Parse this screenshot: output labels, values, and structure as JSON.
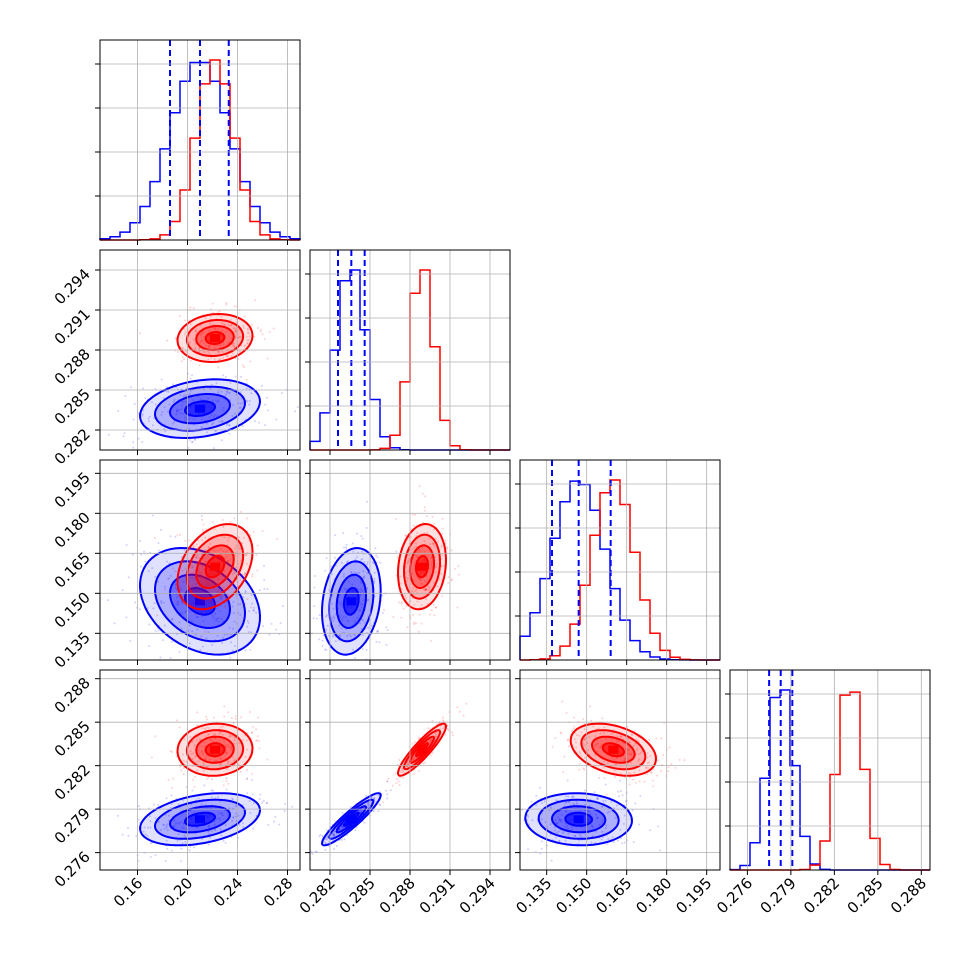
{
  "chart_data": {
    "type": "corner",
    "series": [
      {
        "name": "",
        "color": "#0000ff",
        "means": [
          0.21,
          0.2836,
          0.147,
          0.2783
        ],
        "sds": [
          0.024,
          0.0011,
          0.01,
          0.0009
        ]
      },
      {
        "name": "",
        "color": "#ff0000",
        "means": [
          0.222,
          0.2889,
          0.16,
          0.2831
        ],
        "sds": [
          0.015,
          0.0009,
          0.008,
          0.0009
        ]
      }
    ],
    "correlations": {
      "blue": {
        "1,0": 0.25,
        "2,0": -0.3,
        "2,1": 0.2,
        "3,0": 0.35,
        "3,1": 0.92,
        "3,2": -0.05
      },
      "red": {
        "1,0": 0.1,
        "2,0": 0.35,
        "2,1": 0.15,
        "3,0": 0.05,
        "3,1": 0.9,
        "3,2": -0.35
      }
    },
    "axis_ranges": [
      [
        0.13,
        0.29
      ],
      [
        0.2805,
        0.2955
      ],
      [
        0.125,
        0.2
      ],
      [
        0.2748,
        0.2886
      ]
    ],
    "ticks": [
      [
        0.16,
        0.2,
        0.24,
        0.28
      ],
      [
        0.282,
        0.285,
        0.288,
        0.291,
        0.294
      ],
      [
        0.135,
        0.15,
        0.165,
        0.18,
        0.195
      ],
      [
        0.276,
        0.279,
        0.282,
        0.285,
        0.288
      ]
    ],
    "tick_labels": [
      [
        "0.16",
        "0.20",
        "0.24",
        "0.28"
      ],
      [
        "0.282",
        "0.285",
        "0.288",
        "0.291",
        "0.294"
      ],
      [
        "0.135",
        "0.150",
        "0.165",
        "0.180",
        "0.195"
      ],
      [
        "0.276",
        "0.279",
        "0.282",
        "0.285",
        "0.288"
      ]
    ],
    "quantile_lines": [
      [
        0.186,
        0.21,
        0.233
      ],
      [
        0.2826,
        0.2836,
        0.2846
      ],
      [
        0.137,
        0.147,
        0.159
      ],
      [
        0.2775,
        0.2783,
        0.2791
      ]
    ],
    "grid": true
  }
}
